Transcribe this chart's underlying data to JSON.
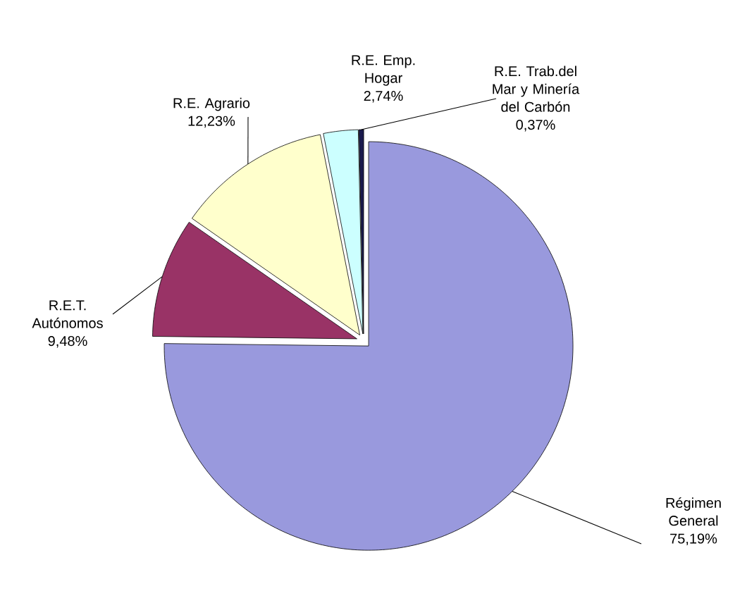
{
  "chart_data": {
    "type": "pie",
    "categories": [
      "Régimen General",
      "R.E.T. Autónomos",
      "R.E. Agrario",
      "R.E. Emp. Hogar",
      "R.E. Trab.del Mar y Minería del Carbón"
    ],
    "values": [
      75.19,
      9.48,
      12.23,
      2.74,
      0.37
    ],
    "value_labels": [
      "75,19%",
      "9,48%",
      "12,23%",
      "2,74%",
      "0,37%"
    ],
    "colors": [
      "#9999dd",
      "#993366",
      "#ffffcc",
      "#ccffff",
      "#1a1a4d"
    ]
  }
}
